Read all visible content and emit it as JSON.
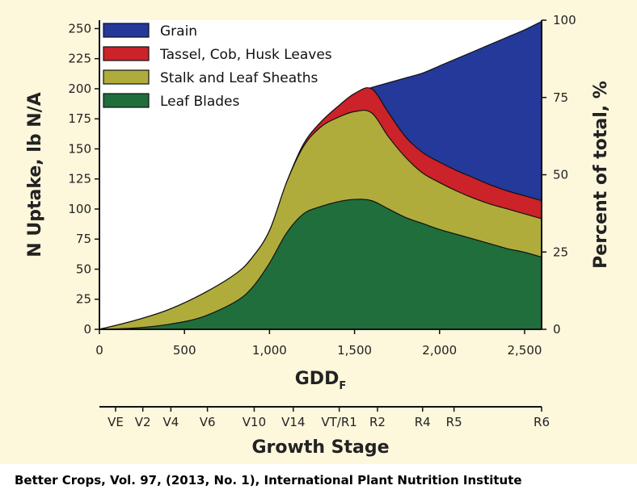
{
  "chart_data": {
    "type": "area",
    "stacked": true,
    "xlabel": "GDD",
    "xlabel_subscript": "F",
    "ylabel": "N Uptake, lb N/A",
    "y2label": "Percent of total, %",
    "xlim": [
      0,
      2600
    ],
    "ylim": [
      0,
      257
    ],
    "y2lim": [
      0,
      100
    ],
    "x_ticks": [
      0,
      500,
      1000,
      1500,
      2000,
      2500
    ],
    "x_tick_labels": [
      "0",
      "500",
      "1,000",
      "1,500",
      "2,000",
      "2,500"
    ],
    "y_ticks": [
      0,
      25,
      50,
      75,
      100,
      125,
      150,
      175,
      200,
      225,
      250
    ],
    "y2_ticks": [
      0,
      25,
      50,
      75,
      100
    ],
    "legend_position": "top-left",
    "series_order_bottom_to_top": [
      "Leaf Blades",
      "Stalk and Leaf Sheaths",
      "Tassel, Cob, Husk Leaves",
      "Grain"
    ],
    "series": [
      {
        "name": "Leaf Blades",
        "color": "#1f6e3c",
        "x": [
          0,
          200,
          400,
          600,
          800,
          900,
          1000,
          1100,
          1200,
          1300,
          1400,
          1500,
          1600,
          1700,
          1800,
          1900,
          2000,
          2100,
          2200,
          2300,
          2400,
          2500,
          2600
        ],
        "cumulative_top": [
          0,
          1,
          4,
          10,
          23,
          35,
          55,
          80,
          96,
          102,
          106,
          108,
          107,
          100,
          93,
          88,
          83,
          79,
          75,
          71,
          67,
          64,
          60
        ]
      },
      {
        "name": "Stalk and Leaf Sheaths",
        "color": "#b0ac3c",
        "x": [
          0,
          200,
          400,
          600,
          800,
          900,
          1000,
          1100,
          1200,
          1300,
          1400,
          1500,
          1600,
          1700,
          1800,
          1900,
          2000,
          2100,
          2200,
          2300,
          2400,
          2500,
          2600
        ],
        "cumulative_top": [
          0,
          7,
          16,
          29,
          46,
          60,
          82,
          122,
          152,
          168,
          176,
          181,
          180,
          160,
          143,
          130,
          122,
          115,
          109,
          104,
          100,
          96,
          92
        ]
      },
      {
        "name": "Tassel, Cob, Husk Leaves",
        "color": "#cc2229",
        "x": [
          0,
          200,
          400,
          600,
          800,
          900,
          1000,
          1100,
          1200,
          1300,
          1400,
          1500,
          1600,
          1700,
          1800,
          1900,
          2000,
          2100,
          2200,
          2300,
          2400,
          2500,
          2600
        ],
        "cumulative_top": [
          0,
          7,
          16,
          29,
          46,
          60,
          82,
          122,
          154,
          172,
          185,
          196,
          200,
          180,
          160,
          147,
          139,
          132,
          126,
          120,
          115,
          111,
          107
        ]
      },
      {
        "name": "Grain",
        "color": "#24399a",
        "x": [
          0,
          200,
          400,
          600,
          800,
          900,
          1000,
          1100,
          1200,
          1300,
          1400,
          1500,
          1600,
          1700,
          1800,
          1900,
          2000,
          2100,
          2200,
          2300,
          2400,
          2500,
          2600
        ],
        "cumulative_top": [
          0,
          7,
          16,
          29,
          46,
          60,
          82,
          122,
          154,
          172,
          185,
          196,
          201,
          205,
          209,
          213,
          219,
          225,
          231,
          237,
          243,
          249,
          256
        ]
      }
    ],
    "growth_stage_axis": {
      "title": "Growth Stage",
      "stages": [
        {
          "label": "VE",
          "x": 95
        },
        {
          "label": "V2",
          "x": 255
        },
        {
          "label": "V4",
          "x": 420
        },
        {
          "label": "V6",
          "x": 635
        },
        {
          "label": "V10",
          "x": 910
        },
        {
          "label": "V14",
          "x": 1140
        },
        {
          "label": "VT/R1",
          "x": 1410
        },
        {
          "label": "R2",
          "x": 1635
        },
        {
          "label": "R4",
          "x": 1900
        },
        {
          "label": "R5",
          "x": 2085
        },
        {
          "label": "R6",
          "x": 2600
        }
      ]
    }
  },
  "source_note": "Better Crops, Vol. 97, (2013, No. 1), International Plant Nutrition Institute"
}
